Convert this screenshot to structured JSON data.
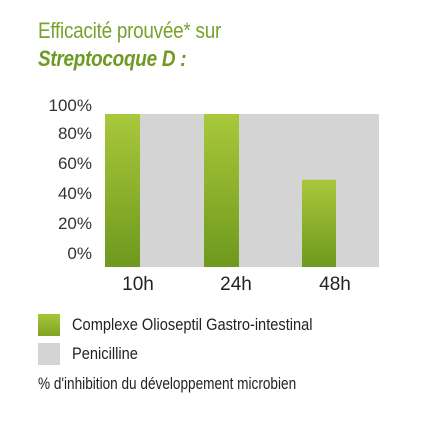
{
  "chart_data": {
    "type": "bar",
    "title": "Efficacité prouvée* sur",
    "subtitle": "Streptocoque D :",
    "categories": [
      "10h",
      "24h",
      "48h"
    ],
    "y_ticks": [
      "100%",
      "80%",
      "60%",
      "40%",
      "20%",
      "0%"
    ],
    "ylim": [
      0,
      100
    ],
    "grid": false,
    "legend_position": "bottom",
    "series": [
      {
        "name": "Complexe Olioseptil Gastro-intestinal",
        "values": [
          100,
          100,
          57
        ],
        "color": "#8db42c"
      },
      {
        "name": "Penicilline",
        "values": [
          100,
          100,
          100
        ],
        "color": "#d4d4d4"
      }
    ],
    "footnote": "% d'inhibition du développement microbien"
  },
  "colors": {
    "title": "#7aa12b",
    "green_top": "#a8c63a",
    "green_bottom": "#6f9a1e",
    "grey": "#d4d4d4"
  }
}
